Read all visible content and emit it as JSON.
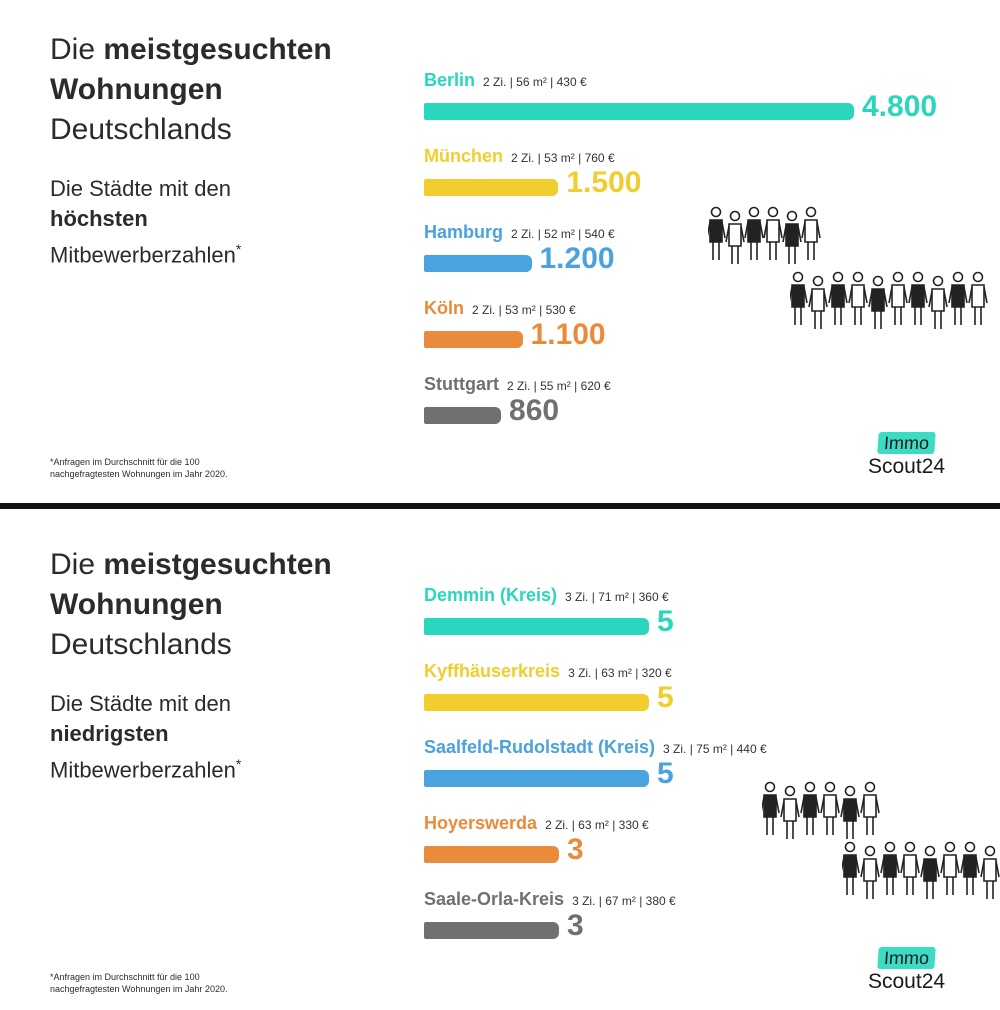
{
  "colors": {
    "teal": "#2ad6bd",
    "yellow": "#f2cd2e",
    "blue": "#4aa2df",
    "orange": "#e98b3a",
    "gray": "#707070",
    "text": "#2b2b2b"
  },
  "panels": [
    {
      "title": {
        "line1_regular": "Die ",
        "line1_bold": "meistgesuchten",
        "line2": "Wohnungen",
        "line3": "Deutschlands"
      },
      "subtitle": {
        "line1": "Die Städte mit den",
        "line2": "höchsten",
        "line3": "Mitbewerberzahlen",
        "mark": "*"
      },
      "footnote": {
        "line1": "*Anfragen im Durchschnitt für die 100",
        "line2": "nachgefragtesten Wohnungen im Jahr 2020."
      },
      "logo": {
        "immo": "Immo",
        "scout": "Scout24"
      },
      "chart_data": {
        "type": "bar",
        "title": "Die meistgesuchten Wohnungen Deutschlands – höchste Mitbewerberzahlen",
        "categories": [
          "Berlin",
          "München",
          "Hamburg",
          "Köln",
          "Stuttgart"
        ],
        "details": [
          "2 Zi. | 56 m² | 430 €",
          "2 Zi. | 53 m² | 760 €",
          "2 Zi. | 52 m² | 540 €",
          "2 Zi. | 53 m² | 530 €",
          "2 Zi. | 55 m² | 620 €"
        ],
        "values": [
          4800,
          1500,
          1200,
          1100,
          860
        ],
        "value_labels": [
          "4.800",
          "1.500",
          "1.200",
          "1.100",
          "860"
        ],
        "colors": [
          "#2ad6bd",
          "#f2cd2e",
          "#4aa2df",
          "#e98b3a",
          "#707070"
        ],
        "orientation": "horizontal"
      }
    },
    {
      "title": {
        "line1_regular": "Die ",
        "line1_bold": "meistgesuchten",
        "line2": "Wohnungen",
        "line3": "Deutschlands"
      },
      "subtitle": {
        "line1": "Die Städte mit den",
        "line2": "niedrigsten",
        "line3": "Mitbewerberzahlen",
        "mark": "*"
      },
      "footnote": {
        "line1": "*Anfragen im Durchschnitt für die 100",
        "line2": "nachgefragtesten Wohnungen im Jahr 2020."
      },
      "logo": {
        "immo": "Immo",
        "scout": "Scout24"
      },
      "chart_data": {
        "type": "bar",
        "title": "Die meistgesuchten Wohnungen Deutschlands – niedrigste Mitbewerberzahlen",
        "categories": [
          "Demmin (Kreis)",
          "Kyffhäuserkreis",
          "Saalfeld-Rudolstadt (Kreis)",
          "Hoyerswerda",
          "Saale-Orla-Kreis"
        ],
        "details": [
          "3 Zi. | 71 m² | 360 €",
          "3 Zi. | 63 m² | 320 €",
          "3 Zi. | 75 m² | 440 €",
          "2 Zi. | 63 m² | 330 €",
          "3 Zi. | 67 m² | 380 €"
        ],
        "values": [
          5,
          5,
          5,
          3,
          3
        ],
        "value_labels": [
          "5",
          "5",
          "5",
          "3",
          "3"
        ],
        "colors": [
          "#2ad6bd",
          "#f2cd2e",
          "#4aa2df",
          "#e98b3a",
          "#707070"
        ],
        "orientation": "horizontal"
      }
    }
  ],
  "icons": {
    "people": "people-crowd-icon"
  }
}
